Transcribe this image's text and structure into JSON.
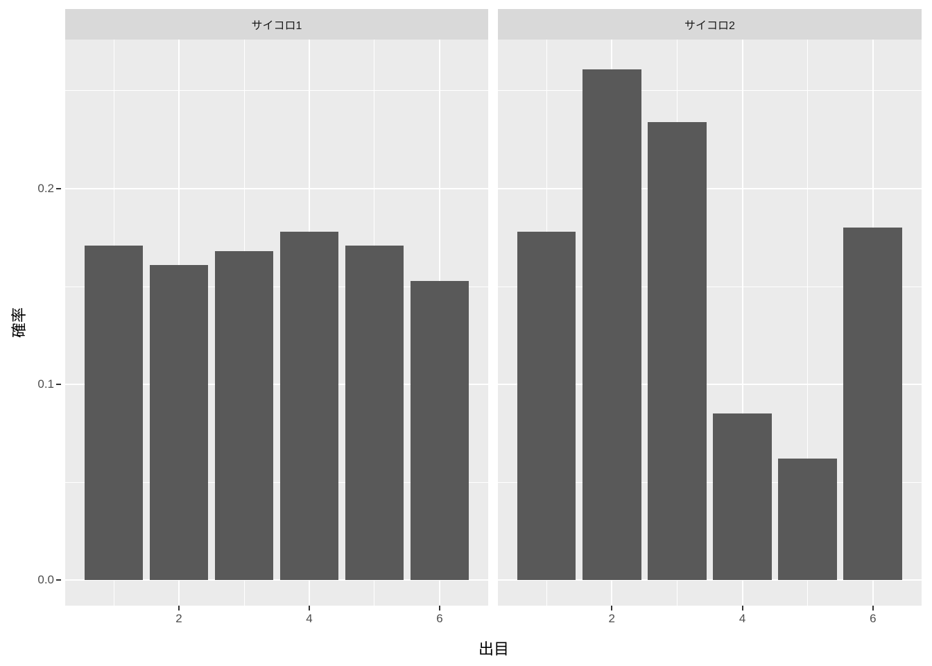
{
  "chart_data": {
    "type": "bar",
    "title": "",
    "xlabel": "出目",
    "ylabel": "確率",
    "facets": [
      {
        "label": "サイコロ1",
        "values": [
          0.171,
          0.161,
          0.168,
          0.178,
          0.171,
          0.153
        ]
      },
      {
        "label": "サイコロ2",
        "values": [
          0.178,
          0.261,
          0.234,
          0.085,
          0.062,
          0.18
        ]
      }
    ],
    "categories": [
      1,
      2,
      3,
      4,
      5,
      6
    ],
    "bar_width": 0.9,
    "x_ticks": [
      {
        "label": "2",
        "value": 2
      },
      {
        "label": "4",
        "value": 4
      },
      {
        "label": "6",
        "value": 6
      }
    ],
    "y_ticks": [
      {
        "label": "0.0",
        "value": 0.0
      },
      {
        "label": "0.1",
        "value": 0.1
      },
      {
        "label": "0.2",
        "value": 0.2
      }
    ],
    "x_minor_ticks": [
      1,
      3,
      5
    ],
    "y_minor_ticks": [
      0.05,
      0.15,
      0.25
    ],
    "x_domain": [
      0.255,
      6.745
    ],
    "y_domain": [
      -0.013,
      0.2762
    ],
    "grid": "on",
    "legend": "none",
    "colors": {
      "bar_fill": "#595959",
      "panel_bg": "#ebebeb",
      "strip_bg": "#d9d9d9",
      "strip_text": "#1a1a1a",
      "grid": "#ffffff",
      "tick_label": "#4d4d4d",
      "tick_mark": "#333333",
      "axis_title": "#000000",
      "background": "#ffffff"
    }
  }
}
